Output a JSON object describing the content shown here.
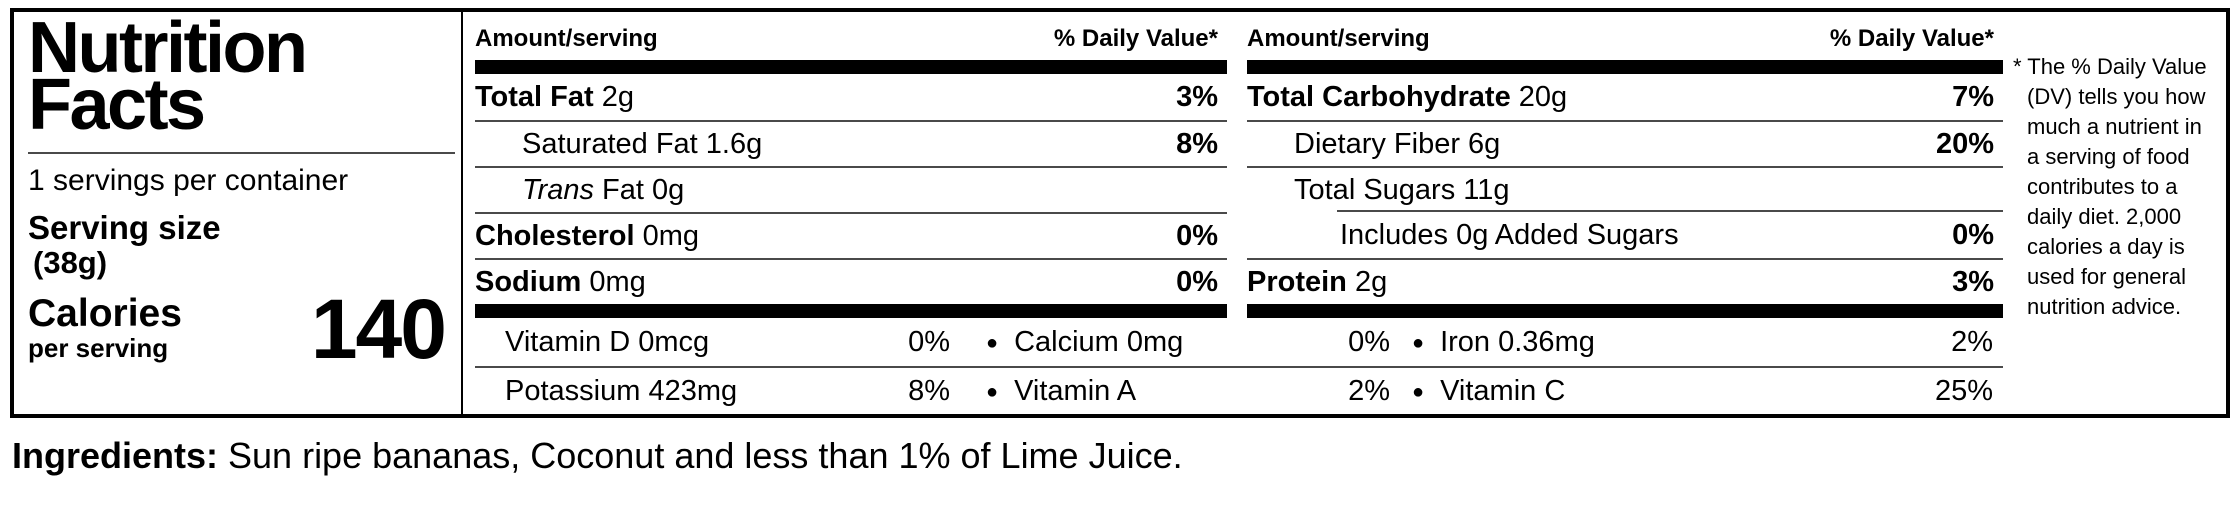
{
  "colors": {
    "ink": "#000000",
    "paper": "#ffffff",
    "hairline": "#4a4a4a"
  },
  "label": {
    "title_line1": "Nutrition",
    "title_line2": "Facts",
    "servings_per_container": "1 servings per container",
    "serving_size_label": "Serving size",
    "serving_size_value": "(38g)",
    "calories_label": "Calories",
    "calories_sublabel": "per serving",
    "calories_value": "140"
  },
  "table": {
    "header_left": "Amount/serving",
    "header_right": "% Daily Value*",
    "left_column_rows": [
      {
        "b": "Total Fat",
        "r": " 2g",
        "dv": "3%"
      },
      {
        "r": "Saturated Fat 1.6g",
        "dv": "8%"
      },
      {
        "i": "Trans",
        "r": " Fat 0g",
        "dv": ""
      },
      {
        "b": "Cholesterol",
        "r": " 0mg",
        "dv": "0%"
      },
      {
        "b": "Sodium",
        "r": " 0mg",
        "dv": "0%"
      }
    ],
    "right_column_rows": [
      {
        "b": "Total Carbohydrate",
        "r": " 20g",
        "dv": "7%"
      },
      {
        "r": "Dietary Fiber 6g",
        "dv": "20%"
      },
      {
        "r": "Total Sugars 11g",
        "dv": ""
      },
      {
        "r": "Includes 0g Added Sugars",
        "dv": "0%"
      },
      {
        "b": "Protein",
        "r": " 2g",
        "dv": "3%"
      }
    ],
    "micronutrients": {
      "bullet": "●",
      "rows": [
        {
          "c1": "Vitamin D 0mcg",
          "p1": "0%",
          "c2": "Calcium 0mg",
          "p2": "0%",
          "c3": "Iron 0.36mg",
          "p3": "2%"
        },
        {
          "c1": "Potassium 423mg",
          "p1": "8%",
          "c2": "Vitamin A",
          "p2": "2%",
          "c3": "Vitamin C",
          "p3": "25%"
        }
      ]
    }
  },
  "footnote": "* The % Daily Value (DV) tells you how much a nutrient in a serving of food contributes to a daily diet. 2,000 calories a day is used for general nutrition advice.",
  "ingredients": {
    "label": "Ingredients:",
    "text": " Sun ripe bananas, Coconut and less than 1% of Lime Juice."
  }
}
